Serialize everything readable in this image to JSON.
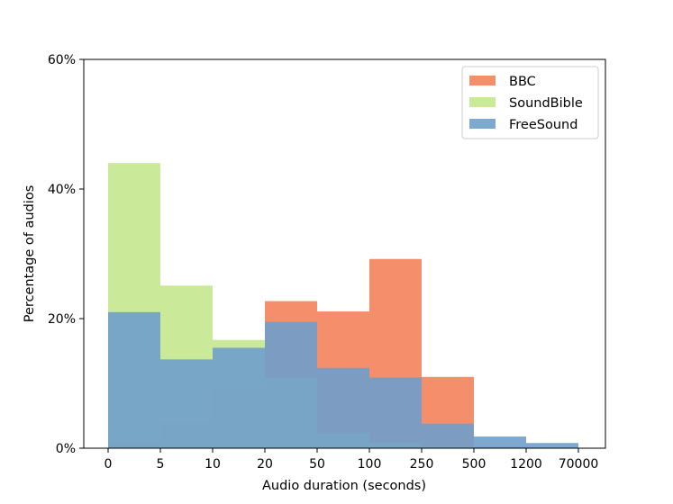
{
  "chart_data": {
    "type": "bar",
    "categories": [
      "0",
      "5",
      "10",
      "20",
      "50",
      "100",
      "250",
      "500",
      "1200",
      "70000"
    ],
    "bins": [
      "0-5",
      "5-10",
      "10-20",
      "20-50",
      "50-100",
      "100-250",
      "250-500",
      "500-1200",
      "1200-70000"
    ],
    "series": [
      {
        "name": "BBC",
        "color": "#f4835b",
        "values": [
          1.2,
          4.1,
          9.4,
          22.7,
          21.1,
          29.2,
          11.0,
          0.2,
          0.0
        ]
      },
      {
        "name": "SoundBible",
        "color": "#c5e88e",
        "values": [
          44.0,
          25.1,
          16.7,
          10.9,
          2.3,
          0.8,
          0.2,
          0.0,
          0.0
        ]
      },
      {
        "name": "FreeSound",
        "color": "#6f9ecb",
        "values": [
          21.0,
          13.7,
          15.5,
          19.5,
          12.4,
          10.9,
          3.8,
          1.8,
          0.8
        ]
      }
    ],
    "xlabel": "Audio duration (seconds)",
    "ylabel": "Percentage of audios",
    "ylim": [
      0,
      60
    ],
    "yticks": [
      0,
      20,
      40,
      60
    ],
    "ytick_labels": [
      "0%",
      "20%",
      "40%",
      "60%"
    ],
    "legend": {
      "position": "top-right"
    },
    "grid": false
  }
}
